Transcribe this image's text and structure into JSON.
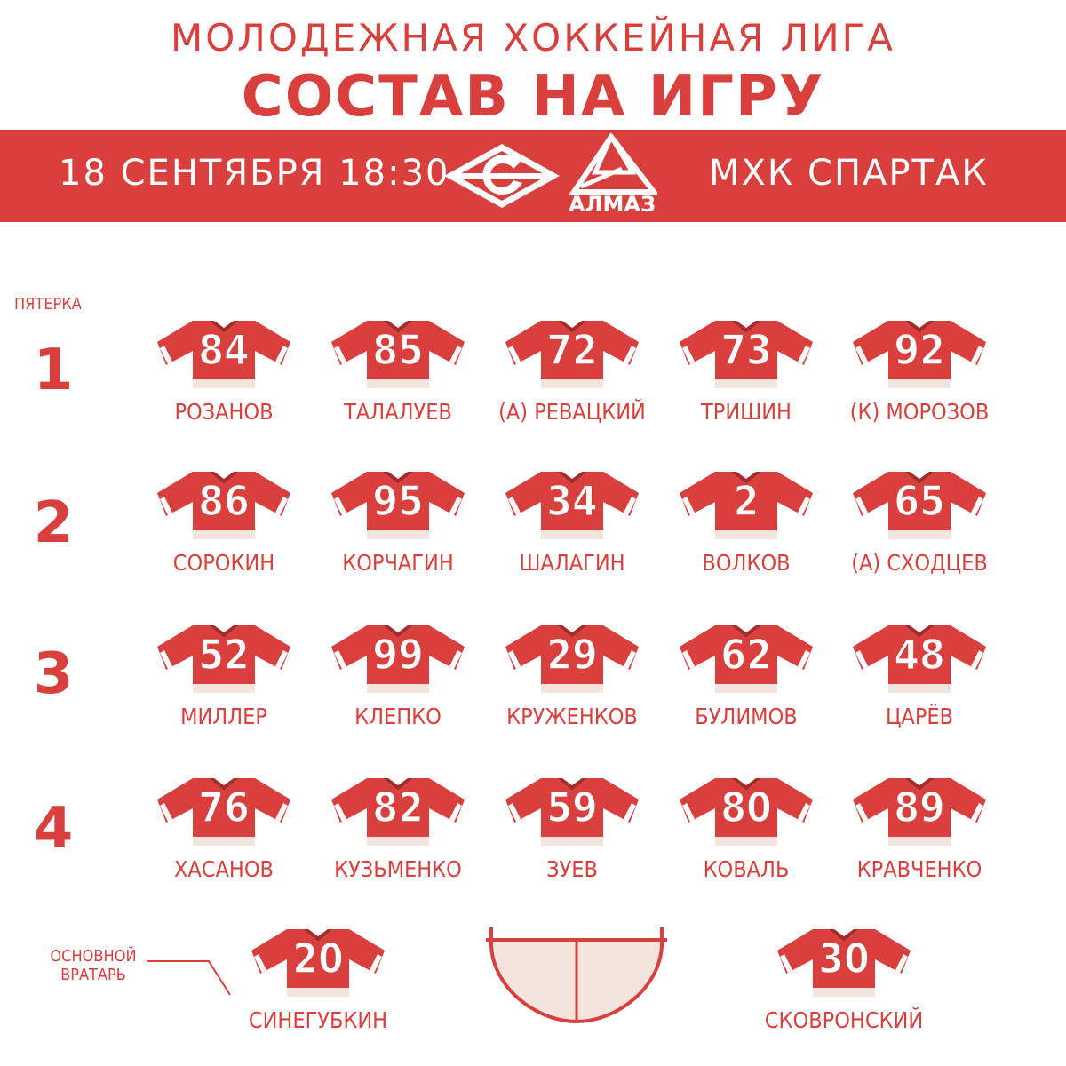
{
  "header": {
    "league": "МОЛОДЕЖНАЯ ХОККЕЙНАЯ ЛИГА",
    "title": "СОСТАВ НА ИГРУ"
  },
  "match": {
    "datetime": "18 СЕНТЯБРЯ 18:30",
    "opponent_logo_text": "АЛМАЗ",
    "team": "МХК СПАРТАК"
  },
  "colors": {
    "accent": "#d9403d",
    "jersey_hem": "#f3e4dd"
  },
  "lines_label": "ПЯТЕРКА",
  "lines": [
    {
      "number": "1",
      "players": [
        {
          "jersey": "84",
          "name": "РОЗАНОВ"
        },
        {
          "jersey": "85",
          "name": "ТАЛАЛУЕВ"
        },
        {
          "jersey": "72",
          "name": "(А) РЕВАЦКИЙ"
        },
        {
          "jersey": "73",
          "name": "ТРИШИН"
        },
        {
          "jersey": "92",
          "name": "(К) МОРОЗОВ"
        }
      ]
    },
    {
      "number": "2",
      "players": [
        {
          "jersey": "86",
          "name": "СОРОКИН"
        },
        {
          "jersey": "95",
          "name": "КОРЧАГИН"
        },
        {
          "jersey": "34",
          "name": "ШАЛАГИН"
        },
        {
          "jersey": "2",
          "name": "ВОЛКОВ"
        },
        {
          "jersey": "65",
          "name": "(А) СХОДЦЕВ"
        }
      ]
    },
    {
      "number": "3",
      "players": [
        {
          "jersey": "52",
          "name": "МИЛЛЕР"
        },
        {
          "jersey": "99",
          "name": "КЛЕПКО"
        },
        {
          "jersey": "29",
          "name": "КРУЖЕНКОВ"
        },
        {
          "jersey": "62",
          "name": "БУЛИМОВ"
        },
        {
          "jersey": "48",
          "name": "ЦАРЁВ"
        }
      ]
    },
    {
      "number": "4",
      "players": [
        {
          "jersey": "76",
          "name": "ХАСАНОВ"
        },
        {
          "jersey": "82",
          "name": "КУЗЬМЕНКО"
        },
        {
          "jersey": "59",
          "name": "ЗУЕВ"
        },
        {
          "jersey": "80",
          "name": "КОВАЛЬ"
        },
        {
          "jersey": "89",
          "name": "КРАВЧЕНКО"
        }
      ]
    }
  ],
  "goalies": {
    "label_line1": "ОСНОВНОЙ",
    "label_line2": "ВРАТАРЬ",
    "starter": {
      "jersey": "20",
      "name": "СИНЕГУБКИН"
    },
    "backup": {
      "jersey": "30",
      "name": "СКОВРОНСКИЙ"
    }
  }
}
